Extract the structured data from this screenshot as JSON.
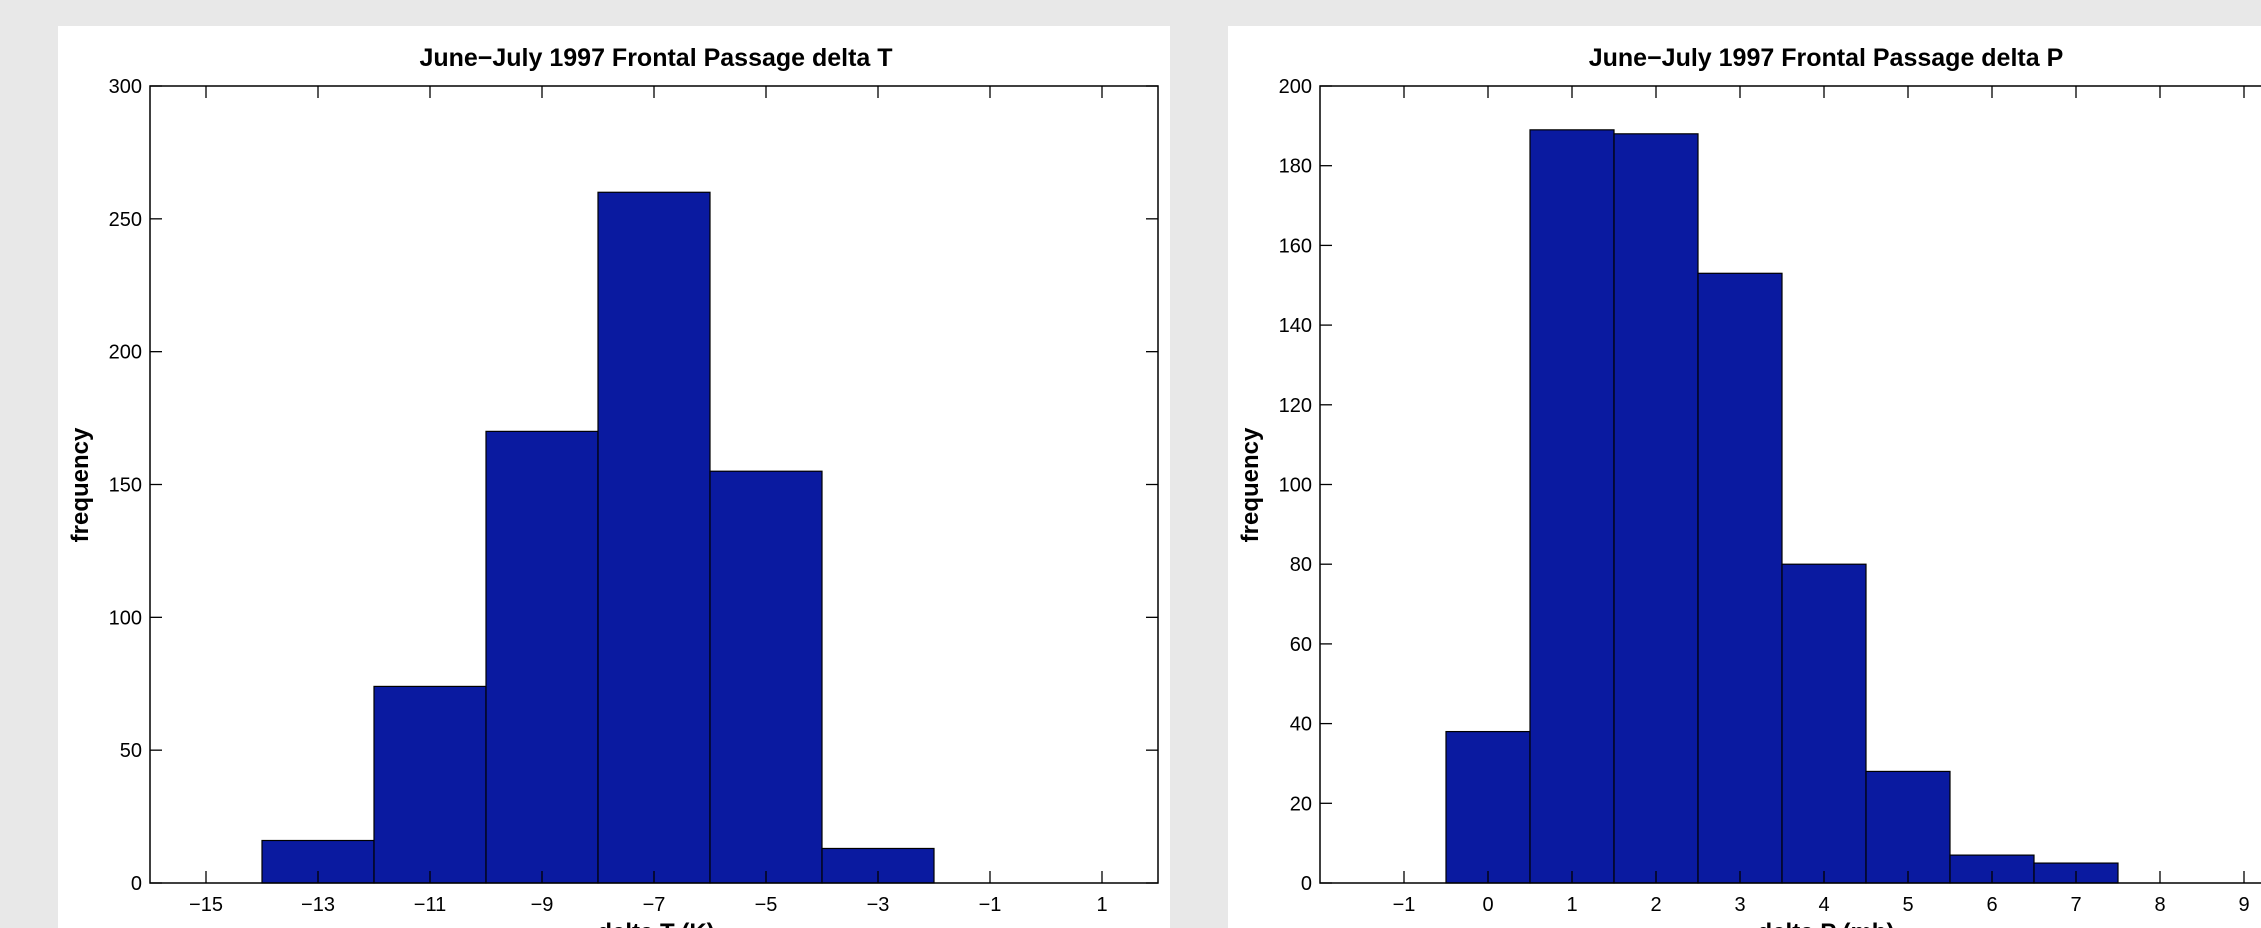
{
  "chart_data": [
    {
      "type": "bar",
      "title": "June−July 1997 Frontal Passage delta T",
      "xlabel": "delta T (K)",
      "ylabel": "frequency",
      "xlim": [
        -16,
        2
      ],
      "ylim": [
        0,
        300
      ],
      "xticks": [
        -15,
        -13,
        -11,
        -9,
        -7,
        -5,
        -3,
        -1,
        1
      ],
      "xtick_labels": [
        "−15",
        "−13",
        "−11",
        "−9",
        "−7",
        "−5",
        "−3",
        "−1",
        "1"
      ],
      "yticks": [
        0,
        50,
        100,
        150,
        200,
        250,
        300
      ],
      "ytick_labels": [
        "0",
        "50",
        "100",
        "150",
        "200",
        "250",
        "300"
      ],
      "bin_width": 2,
      "bin_edges": [
        -14,
        -12,
        -10,
        -8,
        -6,
        -4,
        -2
      ],
      "categories": [
        "-13",
        "-11",
        "-9",
        "-7",
        "-5",
        "-3"
      ],
      "values": [
        16,
        74,
        170,
        260,
        155,
        13
      ],
      "bar_color": "#0a1aa0",
      "grid": false
    },
    {
      "type": "bar",
      "title": "June−July 1997 Frontal Passage delta P",
      "xlabel": "delta P (mb)",
      "ylabel": "frequency",
      "xlim": [
        -2,
        10
      ],
      "ylim": [
        0,
        200
      ],
      "xticks": [
        -1,
        0,
        1,
        2,
        3,
        4,
        5,
        6,
        7,
        8,
        9
      ],
      "xtick_labels": [
        "−1",
        "0",
        "1",
        "2",
        "3",
        "4",
        "5",
        "6",
        "7",
        "8",
        "9"
      ],
      "yticks": [
        0,
        20,
        40,
        60,
        80,
        100,
        120,
        140,
        160,
        180,
        200
      ],
      "ytick_labels": [
        "0",
        "20",
        "40",
        "60",
        "80",
        "100",
        "120",
        "140",
        "160",
        "180",
        "200"
      ],
      "bin_width": 1,
      "bin_edges": [
        -0.5,
        0.5,
        1.5,
        2.5,
        3.5,
        4.5,
        5.5,
        6.5,
        7.5
      ],
      "categories": [
        "0",
        "1",
        "2",
        "3",
        "4",
        "5",
        "6",
        "7"
      ],
      "values": [
        38,
        189,
        188,
        153,
        80,
        28,
        7,
        5
      ],
      "bar_color": "#0a1aa0",
      "grid": false
    }
  ]
}
